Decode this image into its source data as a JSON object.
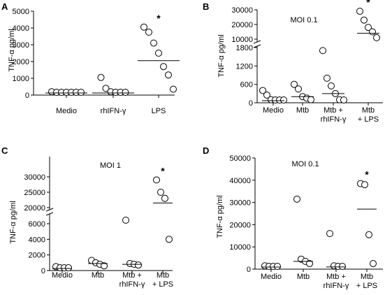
{
  "chart_data": [
    {
      "panel": "A",
      "type": "scatter",
      "title": "",
      "ylabel": "TNF-α pg/ml",
      "ylim": [
        0,
        5000
      ],
      "yticks": [
        "0",
        "1000",
        "2000",
        "3000",
        "4000",
        "5000"
      ],
      "categories": [
        "Medio",
        "rhIFN-γ",
        "LPS"
      ],
      "points": [
        [
          200,
          100,
          150,
          50,
          50,
          100,
          150
        ],
        [
          1050,
          400,
          200,
          100,
          50,
          50
        ],
        [
          4050,
          3750,
          3100,
          2500,
          1700,
          1200,
          350
        ]
      ],
      "means": [
        100,
        50,
        2050
      ],
      "significance": [
        "",
        "",
        "*"
      ]
    },
    {
      "panel": "B",
      "type": "scatter",
      "title": "MOI 0.1",
      "ylabel": "TNF-α pg/ml",
      "yticks": [
        "0",
        "600",
        "1200",
        "1800",
        "10000",
        "20000",
        "30000"
      ],
      "categories": [
        "Medio",
        "Mtb",
        "Mtb +\nrhIFN-γ",
        "Mtb\n+ LPS"
      ],
      "points": [
        [
          400,
          250,
          100,
          50,
          20,
          10
        ],
        [
          600,
          450,
          200,
          150,
          100
        ],
        [
          1700,
          800,
          550,
          300,
          100,
          50
        ],
        [
          29000,
          23000,
          18000,
          15000,
          11000
        ]
      ],
      "means": [
        60,
        200,
        300,
        14000
      ],
      "significance": [
        "",
        "",
        "",
        "*"
      ]
    },
    {
      "panel": "C",
      "type": "scatter",
      "title": "MOI 1",
      "ylabel": "TNF-α pg/ml",
      "yticks": [
        "0",
        "2000",
        "4000",
        "6000",
        "20000",
        "25000",
        "30000"
      ],
      "categories": [
        "Medio",
        "Mtb",
        "Mtb +\nrhIFN-γ",
        "Mtb\n+ LPS"
      ],
      "points": [
        [
          500,
          200,
          100,
          50
        ],
        [
          1300,
          1000,
          800,
          600
        ],
        [
          6500,
          900,
          800,
          700
        ],
        [
          29000,
          25000,
          23000,
          4000
        ]
      ],
      "means": [
        200,
        900,
        800,
        21500
      ],
      "significance": [
        "",
        "",
        "",
        "*"
      ]
    },
    {
      "panel": "D",
      "type": "scatter",
      "title": "MOI 0.1",
      "ylabel": "TNF-α pg/ml",
      "ylim": [
        0,
        50000
      ],
      "yticks": [
        "0",
        "10000",
        "20000",
        "30000",
        "40000",
        "50000"
      ],
      "categories": [
        "Medio",
        "Mtb",
        "Mtb +\nrhIFN-γ",
        "Mtb\n+ LPS"
      ],
      "points": [
        [
          1500,
          800,
          400,
          200
        ],
        [
          31500,
          4500,
          3500,
          2500
        ],
        [
          16000,
          1500,
          1000,
          800
        ],
        [
          38500,
          38000,
          15500,
          2500
        ]
      ],
      "means": [
        600,
        3500,
        1000,
        27000
      ],
      "significance": [
        "",
        "",
        "",
        "*"
      ]
    }
  ]
}
